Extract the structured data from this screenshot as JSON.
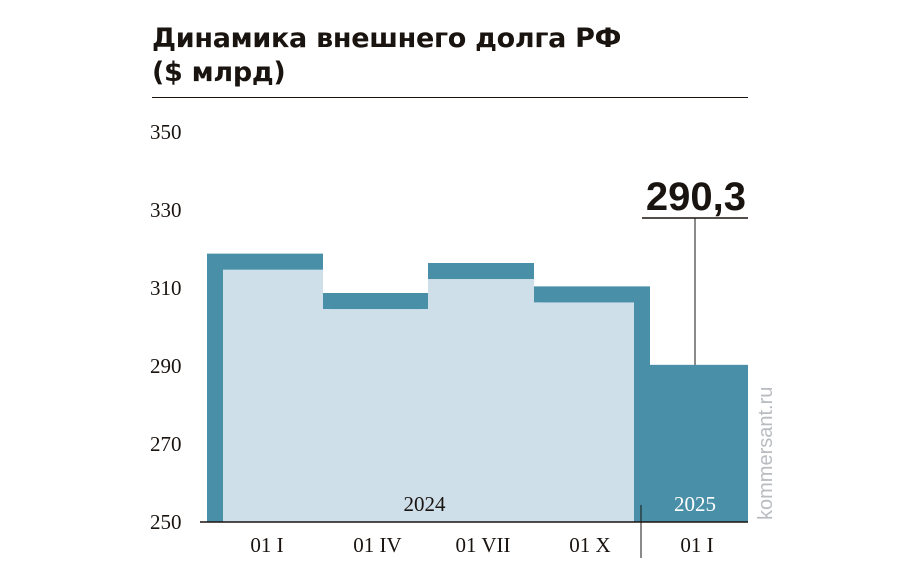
{
  "chart_data": {
    "type": "area",
    "title": "Динамика внешнего долга РФ",
    "subtitle": "($ млрд)",
    "categories": [
      "01 I",
      "01 IV",
      "01 VII",
      "01 X",
      "01 I"
    ],
    "values": [
      314.7,
      304.6,
      312.3,
      306.3,
      290.3
    ],
    "ylim": [
      250,
      350
    ],
    "yticks": [
      "350",
      "330",
      "310",
      "290",
      "270",
      "250"
    ],
    "year_labels": [
      {
        "label": "2024",
        "group": [
          0,
          3
        ]
      },
      {
        "label": "2025",
        "group": [
          4,
          4
        ]
      }
    ],
    "callout": {
      "label": "290,3",
      "index": 4
    },
    "highlight_color": "#4a8fa8",
    "fill_color": "#cfdfe9",
    "grid": false
  },
  "watermark": "kommersant.ru"
}
